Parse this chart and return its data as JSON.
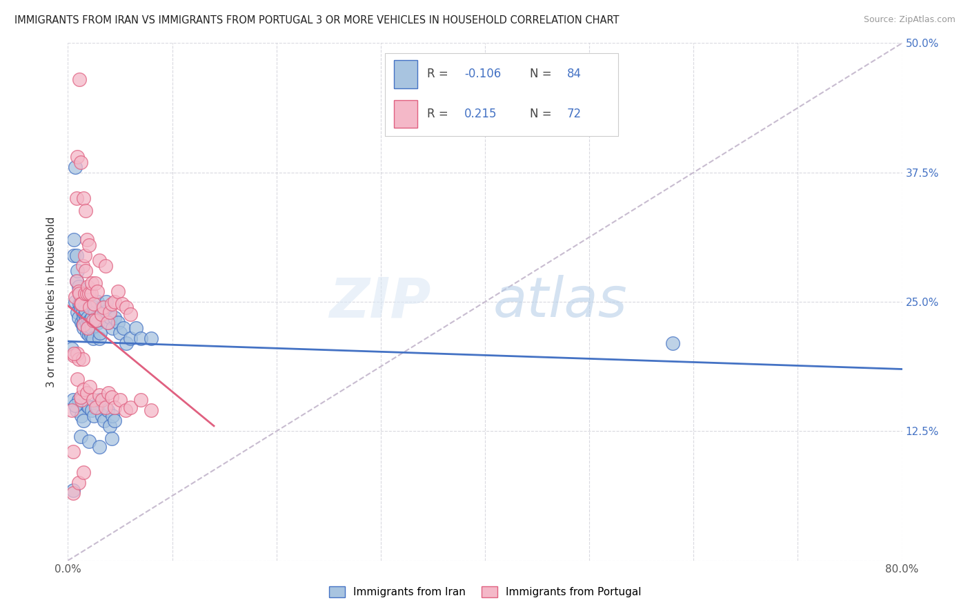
{
  "title": "IMMIGRANTS FROM IRAN VS IMMIGRANTS FROM PORTUGAL 3 OR MORE VEHICLES IN HOUSEHOLD CORRELATION CHART",
  "source": "Source: ZipAtlas.com",
  "ylabel": "3 or more Vehicles in Household",
  "x_min": 0.0,
  "x_max": 0.8,
  "y_min": 0.0,
  "y_max": 0.5,
  "iran_color": "#a8c4e0",
  "portugal_color": "#f4b8c8",
  "iran_line_color": "#4472c4",
  "portugal_line_color": "#e06080",
  "diagonal_color": "#c8bcd0",
  "watermark_zip": "ZIP",
  "watermark_atlas": "atlas",
  "iran_R": -0.106,
  "iran_N": 84,
  "portugal_R": 0.215,
  "portugal_N": 72,
  "iran_x": [
    0.004,
    0.006,
    0.006,
    0.007,
    0.007,
    0.008,
    0.008,
    0.009,
    0.009,
    0.01,
    0.01,
    0.011,
    0.011,
    0.012,
    0.012,
    0.013,
    0.013,
    0.014,
    0.014,
    0.015,
    0.015,
    0.016,
    0.016,
    0.017,
    0.017,
    0.018,
    0.018,
    0.019,
    0.019,
    0.02,
    0.02,
    0.021,
    0.021,
    0.022,
    0.022,
    0.023,
    0.023,
    0.024,
    0.025,
    0.026,
    0.027,
    0.028,
    0.029,
    0.03,
    0.031,
    0.033,
    0.035,
    0.037,
    0.039,
    0.041,
    0.043,
    0.045,
    0.048,
    0.05,
    0.053,
    0.056,
    0.06,
    0.065,
    0.07,
    0.08,
    0.005,
    0.008,
    0.01,
    0.013,
    0.015,
    0.018,
    0.02,
    0.023,
    0.025,
    0.028,
    0.03,
    0.033,
    0.035,
    0.038,
    0.04,
    0.043,
    0.045,
    0.005,
    0.58,
    0.007,
    0.012,
    0.02,
    0.03,
    0.042
  ],
  "iran_y": [
    0.205,
    0.295,
    0.31,
    0.25,
    0.38,
    0.27,
    0.295,
    0.24,
    0.28,
    0.235,
    0.265,
    0.248,
    0.258,
    0.245,
    0.255,
    0.23,
    0.248,
    0.228,
    0.24,
    0.235,
    0.225,
    0.238,
    0.248,
    0.232,
    0.242,
    0.228,
    0.22,
    0.235,
    0.225,
    0.218,
    0.228,
    0.222,
    0.232,
    0.218,
    0.228,
    0.235,
    0.225,
    0.215,
    0.245,
    0.24,
    0.235,
    0.25,
    0.23,
    0.215,
    0.22,
    0.245,
    0.24,
    0.25,
    0.23,
    0.235,
    0.225,
    0.235,
    0.23,
    0.22,
    0.225,
    0.21,
    0.215,
    0.225,
    0.215,
    0.215,
    0.155,
    0.145,
    0.155,
    0.14,
    0.135,
    0.15,
    0.148,
    0.145,
    0.14,
    0.148,
    0.155,
    0.14,
    0.135,
    0.145,
    0.13,
    0.14,
    0.135,
    0.068,
    0.21,
    0.15,
    0.12,
    0.115,
    0.11,
    0.118
  ],
  "portugal_x": [
    0.004,
    0.005,
    0.006,
    0.007,
    0.008,
    0.008,
    0.009,
    0.009,
    0.01,
    0.01,
    0.011,
    0.011,
    0.012,
    0.012,
    0.013,
    0.013,
    0.014,
    0.014,
    0.015,
    0.015,
    0.016,
    0.016,
    0.017,
    0.017,
    0.018,
    0.018,
    0.019,
    0.019,
    0.02,
    0.02,
    0.021,
    0.022,
    0.023,
    0.024,
    0.025,
    0.026,
    0.027,
    0.028,
    0.03,
    0.032,
    0.034,
    0.036,
    0.038,
    0.04,
    0.042,
    0.045,
    0.048,
    0.052,
    0.056,
    0.06,
    0.006,
    0.009,
    0.012,
    0.015,
    0.018,
    0.021,
    0.024,
    0.027,
    0.03,
    0.033,
    0.036,
    0.039,
    0.042,
    0.045,
    0.05,
    0.055,
    0.06,
    0.07,
    0.08,
    0.005,
    0.01,
    0.015
  ],
  "portugal_y": [
    0.145,
    0.105,
    0.198,
    0.255,
    0.27,
    0.35,
    0.39,
    0.2,
    0.26,
    0.195,
    0.465,
    0.258,
    0.385,
    0.248,
    0.155,
    0.248,
    0.285,
    0.195,
    0.35,
    0.228,
    0.295,
    0.258,
    0.338,
    0.28,
    0.258,
    0.31,
    0.265,
    0.225,
    0.305,
    0.258,
    0.245,
    0.258,
    0.268,
    0.232,
    0.248,
    0.268,
    0.232,
    0.26,
    0.29,
    0.238,
    0.245,
    0.285,
    0.23,
    0.24,
    0.248,
    0.25,
    0.26,
    0.248,
    0.245,
    0.238,
    0.2,
    0.175,
    0.158,
    0.165,
    0.162,
    0.168,
    0.155,
    0.148,
    0.16,
    0.155,
    0.148,
    0.162,
    0.158,
    0.148,
    0.155,
    0.145,
    0.148,
    0.155,
    0.145,
    0.065,
    0.075,
    0.085
  ]
}
